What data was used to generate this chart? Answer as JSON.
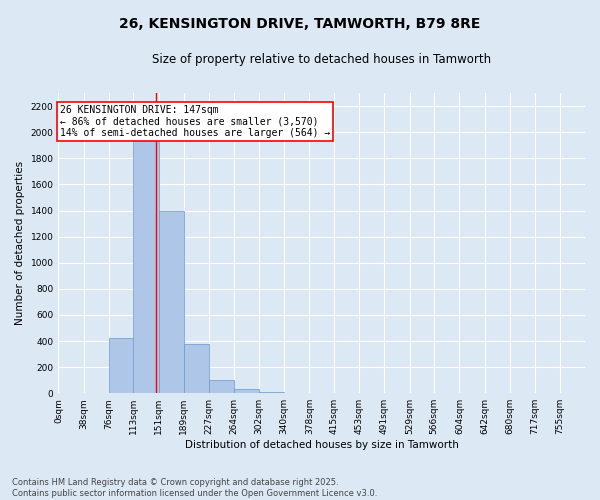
{
  "title": "26, KENSINGTON DRIVE, TAMWORTH, B79 8RE",
  "subtitle": "Size of property relative to detached houses in Tamworth",
  "xlabel": "Distribution of detached houses by size in Tamworth",
  "ylabel": "Number of detached properties",
  "bin_labels": [
    "0sqm",
    "38sqm",
    "76sqm",
    "113sqm",
    "151sqm",
    "189sqm",
    "227sqm",
    "264sqm",
    "302sqm",
    "340sqm",
    "378sqm",
    "415sqm",
    "453sqm",
    "491sqm",
    "529sqm",
    "566sqm",
    "604sqm",
    "642sqm",
    "680sqm",
    "717sqm",
    "755sqm"
  ],
  "bar_values": [
    2,
    5,
    420,
    2050,
    1400,
    375,
    100,
    35,
    8,
    3,
    2,
    1,
    0,
    0,
    0,
    0,
    0,
    0,
    0,
    0
  ],
  "bin_edges": [
    0,
    38,
    76,
    113,
    151,
    189,
    227,
    264,
    302,
    340,
    378,
    415,
    453,
    491,
    529,
    566,
    604,
    642,
    680,
    717,
    755
  ],
  "bar_color": "#aec6e8",
  "bar_edge_color": "#6699cc",
  "red_line_x": 147,
  "annotation_text": "26 KENSINGTON DRIVE: 147sqm\n← 86% of detached houses are smaller (3,570)\n14% of semi-detached houses are larger (564) →",
  "annotation_box_color": "white",
  "annotation_box_edge_color": "red",
  "ylim": [
    0,
    2300
  ],
  "yticks": [
    0,
    200,
    400,
    600,
    800,
    1000,
    1200,
    1400,
    1600,
    1800,
    2000,
    2200
  ],
  "background_color": "#dce9f5",
  "grid_color": "white",
  "footer_line1": "Contains HM Land Registry data © Crown copyright and database right 2025.",
  "footer_line2": "Contains public sector information licensed under the Open Government Licence v3.0.",
  "title_fontsize": 10,
  "subtitle_fontsize": 8.5,
  "axis_label_fontsize": 7.5,
  "tick_fontsize": 6.5,
  "annotation_fontsize": 7,
  "footer_fontsize": 6
}
